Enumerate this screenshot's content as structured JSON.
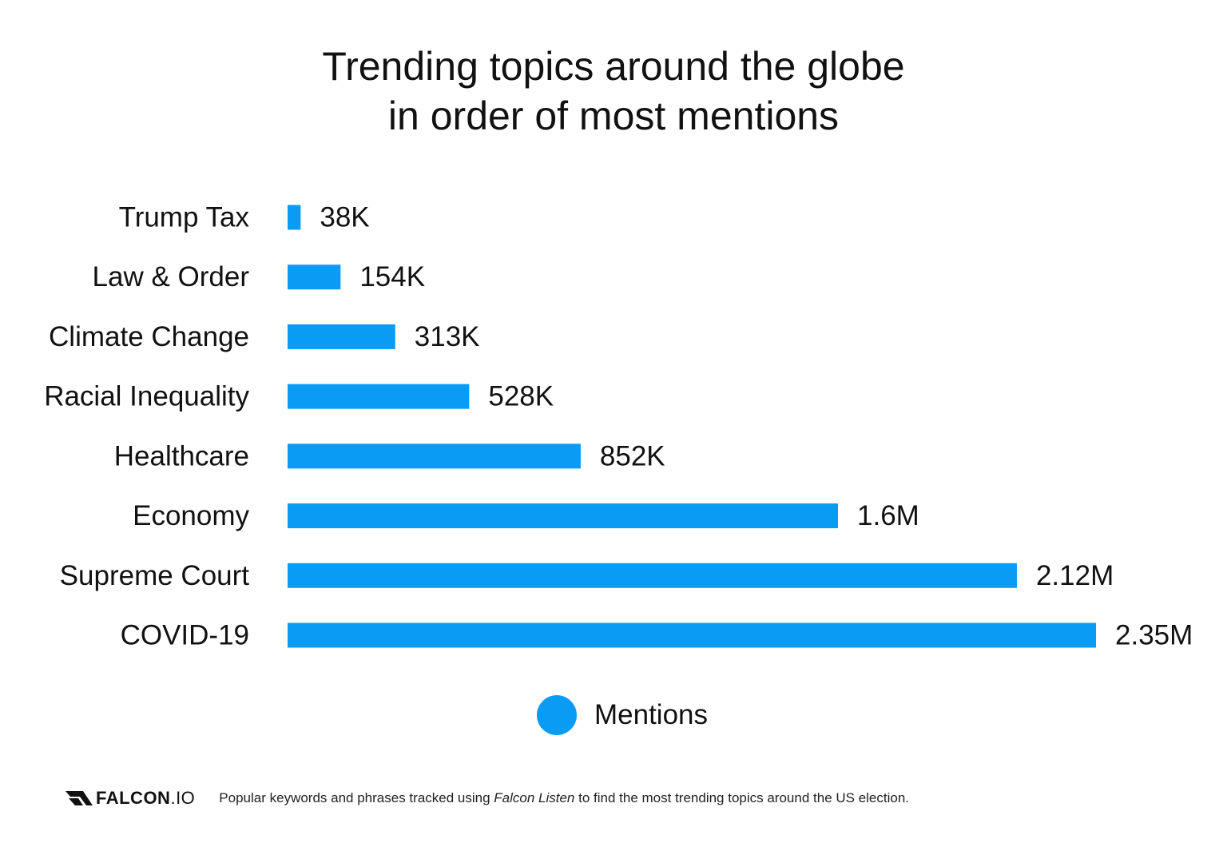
{
  "chart_data": {
    "type": "bar",
    "orientation": "horizontal",
    "title_lines": [
      "Trending topics around the globe",
      "in order of most mentions"
    ],
    "categories": [
      "Trump Tax",
      "Law & Order",
      "Climate Change",
      "Racial Inequality",
      "Healthcare",
      "Economy",
      "Supreme Court",
      "COVID-19"
    ],
    "series": [
      {
        "name": "Mentions",
        "values": [
          38000,
          154000,
          313000,
          528000,
          852000,
          1600000,
          2120000,
          2350000
        ],
        "labels": [
          "38K",
          "154K",
          "313K",
          "528K",
          "852K",
          "1.6M",
          "2.12M",
          "2.35M"
        ],
        "color": "#0a9cf5"
      }
    ],
    "xlim": [
      0,
      2350000
    ],
    "grid": false,
    "legend_position": "bottom-center"
  },
  "footer": {
    "logo_bold": "FALCON",
    "logo_light": ".IO",
    "note_before": "Popular keywords and phrases tracked using ",
    "note_italic": "Falcon Listen",
    "note_after": " to find the most trending topics around the US election."
  },
  "colors": {
    "bar": "#0a9cf5",
    "text": "#111111",
    "background": "#ffffff"
  }
}
